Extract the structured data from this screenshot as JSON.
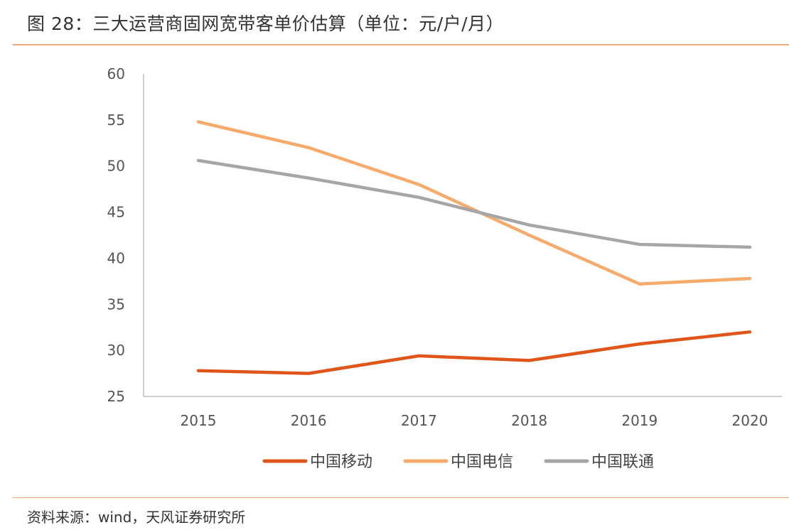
{
  "header": {
    "title": "图 28：三大运营商固网宽带客单价估算（单位：元/户/月）"
  },
  "footer": {
    "source": "资料来源：wind，天风证券研究所"
  },
  "chart_data": {
    "type": "line",
    "title": "三大运营商固网宽带客单价估算（单位：元/户/月）",
    "xlabel": "",
    "ylabel": "",
    "categories": [
      "2015",
      "2016",
      "2017",
      "2018",
      "2019",
      "2020"
    ],
    "ylim": [
      25,
      60
    ],
    "yticks": [
      60,
      55,
      50,
      45,
      40,
      35,
      30,
      25
    ],
    "grid": false,
    "legend": "bottom",
    "series": [
      {
        "name": "中国移动",
        "color": "#e0561a",
        "values": [
          27.8,
          27.5,
          29.4,
          28.9,
          30.7,
          32.0
        ]
      },
      {
        "name": "中国电信",
        "color": "#f6ab6a",
        "values": [
          54.8,
          52.0,
          48.0,
          42.5,
          37.2,
          37.8
        ]
      },
      {
        "name": "中国联通",
        "color": "#a6a6a6",
        "values": [
          50.6,
          48.7,
          46.6,
          43.6,
          41.5,
          41.2
        ]
      }
    ]
  }
}
